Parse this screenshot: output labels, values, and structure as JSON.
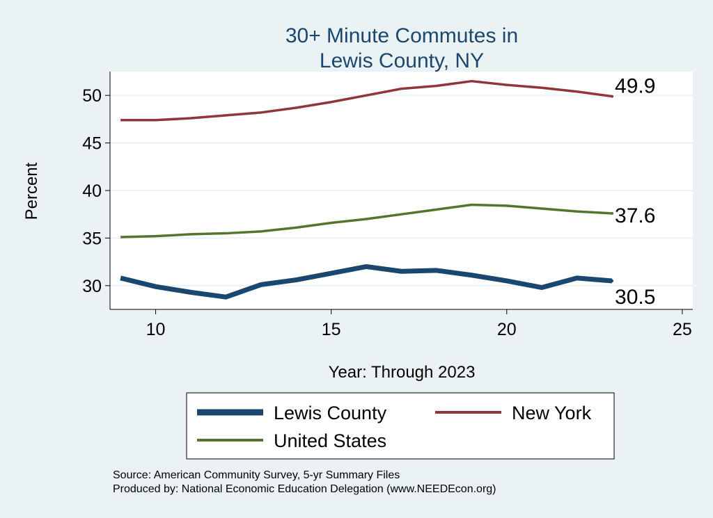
{
  "chart_data": {
    "type": "line",
    "title": [
      "30+ Minute Commutes in",
      "Lewis County, NY"
    ],
    "xlabel": "Year: Through 2023",
    "ylabel": "Percent",
    "xlim": [
      8.7,
      25.3
    ],
    "ylim": [
      27.5,
      52.5
    ],
    "xticks": [
      10,
      15,
      20,
      25
    ],
    "yticks": [
      30,
      35,
      40,
      45,
      50
    ],
    "grid": true,
    "legend_placement": "bottom",
    "x": [
      9,
      10,
      11,
      12,
      13,
      14,
      15,
      16,
      17,
      18,
      19,
      20,
      21,
      22,
      23
    ],
    "series": [
      {
        "name": "Lewis County",
        "color": "#1a476f",
        "values": [
          30.8,
          29.9,
          29.3,
          28.8,
          30.1,
          30.6,
          31.3,
          32.0,
          31.5,
          31.6,
          31.1,
          30.5,
          29.8,
          30.8,
          30.5
        ],
        "end_label": "30.5"
      },
      {
        "name": "New York",
        "color": "#90353b",
        "values": [
          47.4,
          47.4,
          47.6,
          47.9,
          48.2,
          48.7,
          49.3,
          50.0,
          50.7,
          51.0,
          51.5,
          51.1,
          50.8,
          50.4,
          49.9
        ],
        "end_label": "49.9"
      },
      {
        "name": "United States",
        "color": "#55752f",
        "values": [
          35.1,
          35.2,
          35.4,
          35.5,
          35.7,
          36.1,
          36.6,
          37.0,
          37.5,
          38.0,
          38.5,
          38.4,
          38.1,
          37.8,
          37.6
        ],
        "end_label": "37.6"
      }
    ],
    "notes": [
      "Source: American Community Survey, 5-yr Summary Files",
      "Produced by: National Economic Education Delegation (www.NEEDEcon.org)"
    ]
  }
}
